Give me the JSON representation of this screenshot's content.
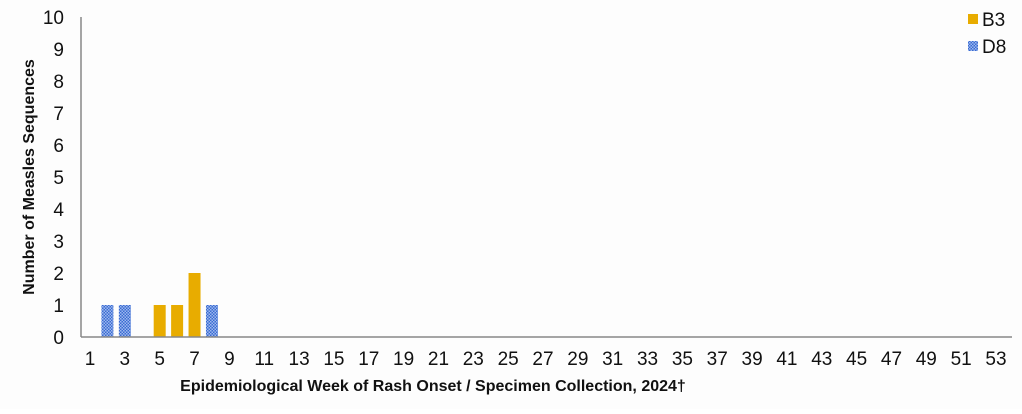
{
  "chart_data": {
    "type": "bar",
    "stacked": true,
    "xlabel": "Epidemiological Week of Rash Onset / Specimen Collection, 2024†",
    "ylabel": "Number of Measles Sequences",
    "ylim": [
      0,
      10
    ],
    "yticks": [
      0,
      1,
      2,
      3,
      4,
      5,
      6,
      7,
      8,
      9,
      10
    ],
    "xlim": [
      1,
      53
    ],
    "xticks": [
      1,
      3,
      5,
      7,
      9,
      11,
      13,
      15,
      17,
      19,
      21,
      23,
      25,
      27,
      29,
      31,
      33,
      35,
      37,
      39,
      41,
      43,
      45,
      47,
      49,
      51,
      53
    ],
    "grid": false,
    "legend_position": "top-right",
    "series": [
      {
        "name": "B3",
        "color": "#E8AC00",
        "pattern": "solid",
        "points": [
          {
            "week": 5,
            "value": 1
          },
          {
            "week": 6,
            "value": 1
          },
          {
            "week": 7,
            "value": 2
          }
        ]
      },
      {
        "name": "D8",
        "color": "#3A6BD1",
        "pattern": "checkered",
        "points": [
          {
            "week": 2,
            "value": 1
          },
          {
            "week": 3,
            "value": 1
          },
          {
            "week": 8,
            "value": 1
          }
        ]
      }
    ]
  }
}
